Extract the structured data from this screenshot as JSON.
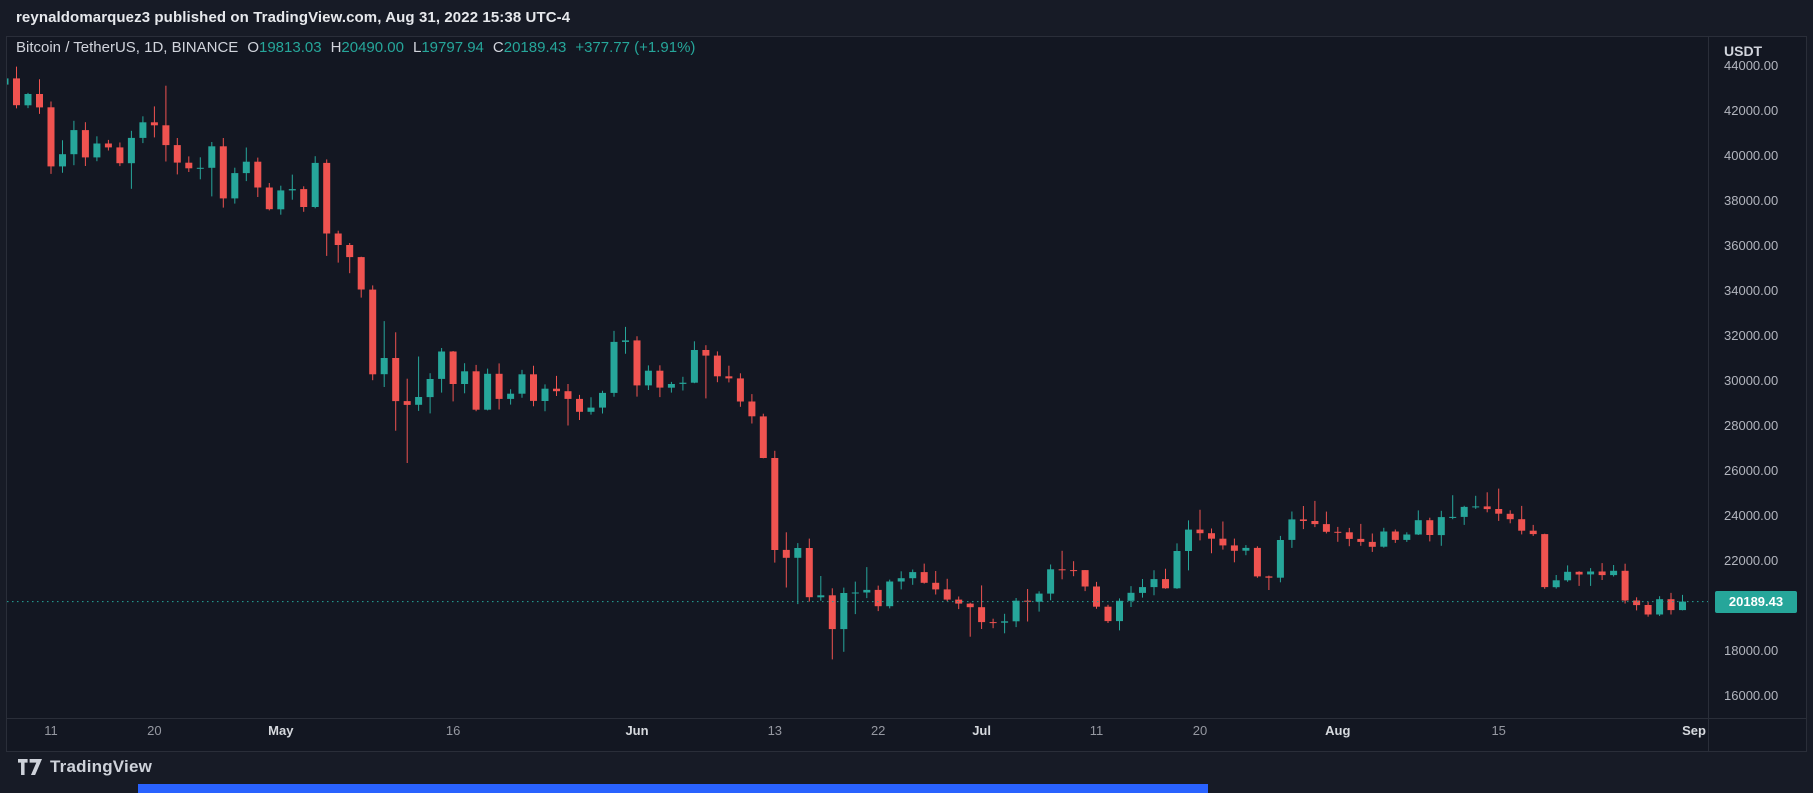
{
  "header": {
    "published_line": "reynaldomarquez3 published on TradingView.com, Aug 31, 2022 15:38 UTC-4"
  },
  "legend": {
    "symbol_title": "Bitcoin / TetherUS, 1D, BINANCE",
    "ohlc": [
      {
        "label": "O",
        "value": "19813.03"
      },
      {
        "label": "H",
        "value": "20490.00"
      },
      {
        "label": "L",
        "value": "19797.94"
      },
      {
        "label": "C",
        "value": "20189.43"
      }
    ],
    "change": "+377.77 (+1.91%)"
  },
  "price_axis": {
    "unit": "USDT",
    "last_price_label": "20189.43"
  },
  "footer": {
    "brand": "TradingView"
  },
  "colors": {
    "page_background": "#171b26",
    "chart_background": "#131722",
    "up": "#26a69a",
    "down": "#ef5350",
    "axis_text": "#b2b5be",
    "text_primary": "#d1d4dc",
    "separator": "#2a2e39",
    "badge_text": "#ffffff",
    "accent_bar": "#2962ff"
  },
  "chart_data": {
    "type": "candlestick",
    "title": "Bitcoin / TetherUS, 1D, BINANCE",
    "symbol": "BTCUSDT",
    "exchange": "BINANCE",
    "interval": "1D",
    "ylabel": "USDT",
    "ylim": [
      15600,
      45200
    ],
    "grid": false,
    "legend_position": "none",
    "price_ticks": [
      44000,
      42000,
      40000,
      38000,
      36000,
      34000,
      32000,
      30000,
      28000,
      26000,
      24000,
      22000,
      20000,
      18000,
      16000
    ],
    "time_labels": [
      {
        "label": "11",
        "index": 4,
        "major": false
      },
      {
        "label": "20",
        "index": 13,
        "major": false
      },
      {
        "label": "May",
        "index": 24,
        "major": true
      },
      {
        "label": "16",
        "index": 39,
        "major": false
      },
      {
        "label": "Jun",
        "index": 55,
        "major": true
      },
      {
        "label": "13",
        "index": 67,
        "major": false
      },
      {
        "label": "22",
        "index": 76,
        "major": false
      },
      {
        "label": "Jul",
        "index": 85,
        "major": true
      },
      {
        "label": "11",
        "index": 95,
        "major": false
      },
      {
        "label": "20",
        "index": 104,
        "major": false
      },
      {
        "label": "Aug",
        "index": 116,
        "major": true
      },
      {
        "label": "15",
        "index": 130,
        "major": false
      },
      {
        "label": "Sep",
        "index": 147,
        "major": true
      }
    ],
    "last": {
      "open": 19813.03,
      "high": 20490.0,
      "low": 19797.94,
      "close": 20189.43,
      "change": "+377.77",
      "change_pct": "+1.91%"
    },
    "columns": [
      "date",
      "open",
      "high",
      "low",
      "close"
    ],
    "candles": [
      [
        "2022-04-07",
        43170,
        43900,
        42727,
        43444
      ],
      [
        "2022-04-08",
        43444,
        43970,
        42113,
        42252
      ],
      [
        "2022-04-09",
        42252,
        42800,
        42125,
        42753
      ],
      [
        "2022-04-10",
        42753,
        43410,
        41868,
        42158
      ],
      [
        "2022-04-11",
        42158,
        42416,
        39200,
        39530
      ],
      [
        "2022-04-12",
        39530,
        40700,
        39254,
        40074
      ],
      [
        "2022-04-13",
        40074,
        41561,
        39588,
        41147
      ],
      [
        "2022-04-14",
        41147,
        41500,
        39551,
        39935
      ],
      [
        "2022-04-15",
        39935,
        40870,
        39766,
        40551
      ],
      [
        "2022-04-16",
        40551,
        40709,
        40242,
        40378
      ],
      [
        "2022-04-17",
        40378,
        40595,
        39546,
        39678
      ],
      [
        "2022-04-18",
        39678,
        41116,
        38536,
        40801
      ],
      [
        "2022-04-19",
        40801,
        41760,
        40571,
        41493
      ],
      [
        "2022-04-20",
        41493,
        42199,
        40820,
        41358
      ],
      [
        "2022-04-21",
        41358,
        43119,
        39751,
        40480
      ],
      [
        "2022-04-22",
        40480,
        40795,
        39177,
        39700
      ],
      [
        "2022-04-23",
        39700,
        39980,
        39285,
        39450
      ],
      [
        "2022-04-24",
        39450,
        39940,
        38961,
        39469
      ],
      [
        "2022-04-25",
        39469,
        40616,
        38200,
        40426
      ],
      [
        "2022-04-26",
        40426,
        40797,
        37702,
        38112
      ],
      [
        "2022-04-27",
        38112,
        39474,
        37881,
        39235
      ],
      [
        "2022-04-28",
        39235,
        40372,
        38881,
        39742
      ],
      [
        "2022-04-29",
        39742,
        39925,
        38175,
        38596
      ],
      [
        "2022-04-30",
        38596,
        38795,
        37578,
        37630
      ],
      [
        "2022-05-01",
        37630,
        38675,
        37386,
        38468
      ],
      [
        "2022-05-02",
        38468,
        39167,
        38052,
        38525
      ],
      [
        "2022-05-03",
        38525,
        38651,
        37517,
        37728
      ],
      [
        "2022-05-04",
        37728,
        39985,
        37670,
        39690
      ],
      [
        "2022-05-05",
        39690,
        39845,
        35556,
        36551
      ],
      [
        "2022-05-06",
        36551,
        36675,
        35258,
        36040
      ],
      [
        "2022-05-07",
        36040,
        36130,
        34785,
        35501
      ],
      [
        "2022-05-08",
        35501,
        35521,
        33701,
        34059
      ],
      [
        "2022-05-09",
        34059,
        34243,
        30033,
        30296
      ],
      [
        "2022-05-10",
        30296,
        32658,
        29730,
        31017
      ],
      [
        "2022-05-11",
        31017,
        32162,
        27785,
        29103
      ],
      [
        "2022-05-12",
        29103,
        30099,
        26350,
        28936
      ],
      [
        "2022-05-13",
        28936,
        31083,
        28666,
        29283
      ],
      [
        "2022-05-14",
        29283,
        30343,
        28556,
        30086
      ],
      [
        "2022-05-15",
        30086,
        31460,
        29480,
        31305
      ],
      [
        "2022-05-16",
        31305,
        31328,
        29087,
        29862
      ],
      [
        "2022-05-17",
        29862,
        30788,
        29451,
        30425
      ],
      [
        "2022-05-18",
        30425,
        30709,
        28654,
        28720
      ],
      [
        "2022-05-19",
        28720,
        30545,
        28690,
        30314
      ],
      [
        "2022-05-20",
        30314,
        30777,
        28730,
        29200
      ],
      [
        "2022-05-21",
        29200,
        29632,
        28947,
        29432
      ],
      [
        "2022-05-22",
        29432,
        30487,
        29255,
        30293
      ],
      [
        "2022-05-23",
        30293,
        30670,
        28874,
        29109
      ],
      [
        "2022-05-24",
        29109,
        29845,
        28654,
        29655
      ],
      [
        "2022-05-25",
        29655,
        30223,
        29329,
        29542
      ],
      [
        "2022-05-26",
        29542,
        29863,
        28019,
        29201
      ],
      [
        "2022-05-27",
        29201,
        29377,
        28261,
        28627
      ],
      [
        "2022-05-28",
        28627,
        29270,
        28500,
        28814
      ],
      [
        "2022-05-29",
        28814,
        29560,
        28550,
        29468
      ],
      [
        "2022-05-30",
        29468,
        32222,
        29299,
        31734
      ],
      [
        "2022-05-31",
        31734,
        32399,
        31203,
        31801
      ],
      [
        "2022-06-01",
        31801,
        31982,
        29301,
        29799
      ],
      [
        "2022-06-02",
        29799,
        30690,
        29594,
        30452
      ],
      [
        "2022-06-03",
        30452,
        30695,
        29282,
        29700
      ],
      [
        "2022-06-04",
        29700,
        29956,
        29482,
        29864
      ],
      [
        "2022-06-05",
        29864,
        30182,
        29572,
        29919
      ],
      [
        "2022-06-06",
        29919,
        31758,
        29897,
        31373
      ],
      [
        "2022-06-07",
        31373,
        31588,
        29224,
        31125
      ],
      [
        "2022-06-08",
        31125,
        31310,
        29944,
        30205
      ],
      [
        "2022-06-09",
        30205,
        30677,
        29932,
        30110
      ],
      [
        "2022-06-10",
        30110,
        30340,
        28850,
        29083
      ],
      [
        "2022-06-11",
        29083,
        29415,
        28105,
        28424
      ],
      [
        "2022-06-12",
        28424,
        28544,
        26560,
        26574
      ],
      [
        "2022-06-13",
        26574,
        26895,
        21926,
        22487
      ],
      [
        "2022-06-14",
        22487,
        23271,
        20816,
        22137
      ],
      [
        "2022-06-15",
        22137,
        22790,
        20081,
        22573
      ],
      [
        "2022-06-16",
        22573,
        22990,
        20191,
        20385
      ],
      [
        "2022-06-17",
        20385,
        21331,
        20226,
        20473
      ],
      [
        "2022-06-18",
        20473,
        20780,
        17622,
        18970
      ],
      [
        "2022-06-19",
        18970,
        20815,
        17960,
        20574
      ],
      [
        "2022-06-20",
        20574,
        21080,
        19637,
        20594
      ],
      [
        "2022-06-21",
        20594,
        21723,
        20348,
        20710
      ],
      [
        "2022-06-22",
        20710,
        20900,
        19770,
        19987
      ],
      [
        "2022-06-23",
        19987,
        21171,
        19890,
        21085
      ],
      [
        "2022-06-24",
        21085,
        21540,
        20735,
        21233
      ],
      [
        "2022-06-25",
        21233,
        21616,
        20938,
        21502
      ],
      [
        "2022-06-26",
        21502,
        21880,
        20991,
        21027
      ],
      [
        "2022-06-27",
        21027,
        21549,
        20508,
        20735
      ],
      [
        "2022-06-28",
        20735,
        21205,
        20209,
        20280
      ],
      [
        "2022-06-29",
        20280,
        20419,
        19857,
        20104
      ],
      [
        "2022-06-30",
        20104,
        20142,
        18630,
        19942
      ],
      [
        "2022-07-01",
        19942,
        20912,
        18975,
        19279
      ],
      [
        "2022-07-02",
        19279,
        19430,
        19011,
        19252
      ],
      [
        "2022-07-03",
        19252,
        19648,
        18781,
        19315
      ],
      [
        "2022-07-04",
        19315,
        20350,
        19056,
        20231
      ],
      [
        "2022-07-05",
        20231,
        20750,
        19305,
        20190
      ],
      [
        "2022-07-06",
        20190,
        20650,
        19745,
        20548
      ],
      [
        "2022-07-07",
        20548,
        21840,
        20251,
        21627
      ],
      [
        "2022-07-08",
        21627,
        22450,
        21183,
        21592
      ],
      [
        "2022-07-09",
        21592,
        21985,
        21322,
        21591
      ],
      [
        "2022-07-10",
        21591,
        21595,
        20657,
        20860
      ],
      [
        "2022-07-11",
        20860,
        21068,
        19876,
        19963
      ],
      [
        "2022-07-12",
        19963,
        20054,
        19240,
        19325
      ],
      [
        "2022-07-13",
        19325,
        20332,
        18910,
        20226
      ],
      [
        "2022-07-14",
        20226,
        20880,
        19951,
        20580
      ],
      [
        "2022-07-15",
        20580,
        21195,
        20370,
        20836
      ],
      [
        "2022-07-16",
        20836,
        21587,
        20469,
        21190
      ],
      [
        "2022-07-17",
        21190,
        21650,
        20762,
        20781
      ],
      [
        "2022-07-18",
        20781,
        22777,
        20754,
        22440
      ],
      [
        "2022-07-19",
        22440,
        23800,
        21580,
        23389
      ],
      [
        "2022-07-20",
        23389,
        24276,
        22910,
        23231
      ],
      [
        "2022-07-21",
        23231,
        23438,
        22341,
        22987
      ],
      [
        "2022-07-22",
        22987,
        23749,
        22500,
        22690
      ],
      [
        "2022-07-23",
        22690,
        22993,
        21940,
        22451
      ],
      [
        "2022-07-24",
        22451,
        22700,
        22255,
        22576
      ],
      [
        "2022-07-25",
        22576,
        22650,
        21250,
        21310
      ],
      [
        "2022-07-26",
        21310,
        21345,
        20706,
        21254
      ],
      [
        "2022-07-27",
        21254,
        23110,
        21050,
        22930
      ],
      [
        "2022-07-28",
        22930,
        24195,
        22580,
        23843
      ],
      [
        "2022-07-29",
        23843,
        24442,
        23414,
        23773
      ],
      [
        "2022-07-30",
        23773,
        24668,
        23500,
        23634
      ],
      [
        "2022-07-31",
        23634,
        24190,
        23223,
        23293
      ],
      [
        "2022-08-01",
        23293,
        23509,
        22850,
        23271
      ],
      [
        "2022-08-02",
        23271,
        23466,
        22654,
        22978
      ],
      [
        "2022-08-03",
        22978,
        23645,
        22671,
        22846
      ],
      [
        "2022-08-04",
        22846,
        23219,
        22400,
        22630
      ],
      [
        "2022-08-05",
        22630,
        23472,
        22586,
        23305
      ],
      [
        "2022-08-06",
        23305,
        23397,
        22800,
        22933
      ],
      [
        "2022-08-07",
        22933,
        23271,
        22844,
        23175
      ],
      [
        "2022-08-08",
        23175,
        24245,
        23151,
        23809
      ],
      [
        "2022-08-09",
        23809,
        23920,
        22865,
        23150
      ],
      [
        "2022-08-10",
        23150,
        24226,
        22669,
        23948
      ],
      [
        "2022-08-11",
        23948,
        24920,
        23852,
        23957
      ],
      [
        "2022-08-12",
        23957,
        24448,
        23600,
        24402
      ],
      [
        "2022-08-13",
        24402,
        24892,
        24310,
        24424
      ],
      [
        "2022-08-14",
        24424,
        25047,
        24160,
        24305
      ],
      [
        "2022-08-15",
        24305,
        25212,
        23780,
        24095
      ],
      [
        "2022-08-16",
        24095,
        24247,
        23671,
        23854
      ],
      [
        "2022-08-17",
        23854,
        24446,
        23180,
        23342
      ],
      [
        "2022-08-18",
        23342,
        23600,
        23112,
        23191
      ],
      [
        "2022-08-19",
        23191,
        23211,
        20760,
        20834
      ],
      [
        "2022-08-20",
        20834,
        21374,
        20770,
        21139
      ],
      [
        "2022-08-21",
        21139,
        21800,
        21073,
        21516
      ],
      [
        "2022-08-22",
        21516,
        21544,
        20890,
        21398
      ],
      [
        "2022-08-23",
        21398,
        21680,
        20890,
        21528
      ],
      [
        "2022-08-24",
        21528,
        21900,
        21151,
        21368
      ],
      [
        "2022-08-25",
        21368,
        21819,
        21305,
        21559
      ],
      [
        "2022-08-26",
        21559,
        21877,
        20107,
        20241
      ],
      [
        "2022-08-27",
        20241,
        20380,
        19800,
        20038
      ],
      [
        "2022-08-28",
        20038,
        20181,
        19520,
        19616
      ],
      [
        "2022-08-29",
        19616,
        20432,
        19553,
        20298
      ],
      [
        "2022-08-30",
        20298,
        20576,
        19616,
        19812
      ],
      [
        "2022-08-31",
        19813.03,
        20490,
        19797.94,
        20189.43
      ]
    ]
  }
}
